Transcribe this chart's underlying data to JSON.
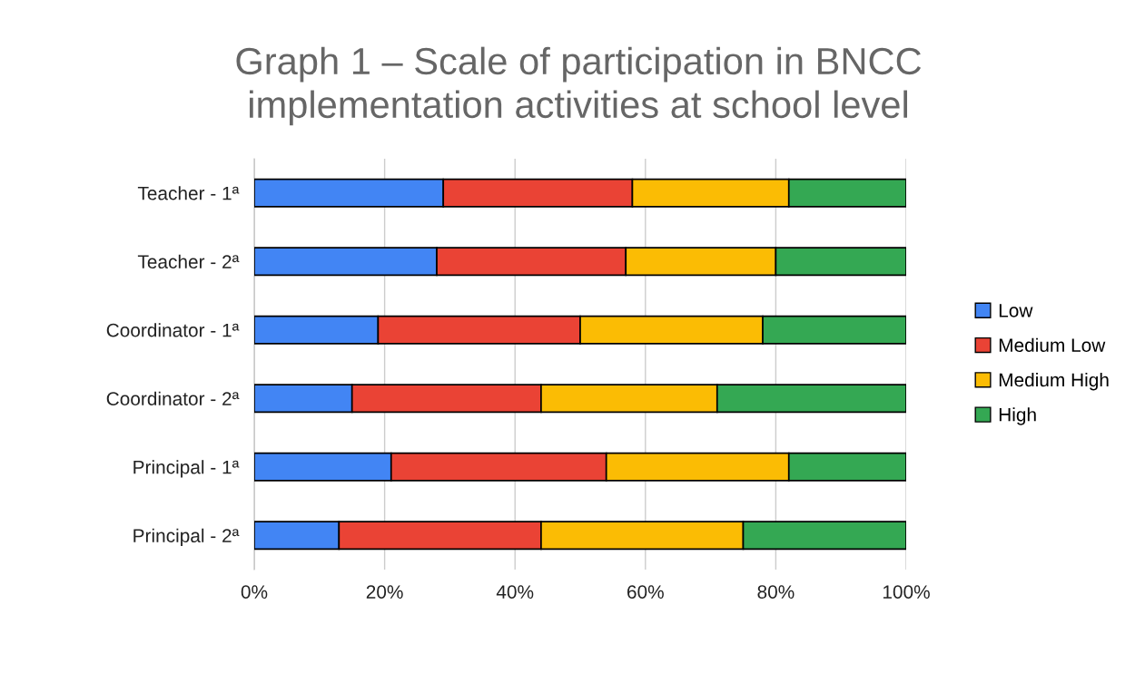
{
  "chart_data": {
    "type": "bar",
    "orientation": "horizontal",
    "stacked": true,
    "title": "Graph 1 – Scale of participation in BNCC\nimplementation activities at school level",
    "categories": [
      "Teacher - 1ª",
      "Teacher - 2ª",
      "Coordinator - 1ª",
      "Coordinator - 2ª",
      "Principal - 1ª",
      "Principal - 2ª"
    ],
    "series": [
      {
        "name": "Low",
        "color": "#4285f4",
        "values": [
          29,
          28,
          19,
          15,
          21,
          13
        ]
      },
      {
        "name": "Medium Low",
        "color": "#ea4335",
        "values": [
          29,
          29,
          31,
          29,
          33,
          31
        ]
      },
      {
        "name": "Medium High",
        "color": "#fbbc04",
        "values": [
          24,
          23,
          28,
          27,
          28,
          31
        ]
      },
      {
        "name": "High",
        "color": "#34a853",
        "values": [
          18,
          20,
          22,
          29,
          18,
          25
        ]
      }
    ],
    "xlim": [
      0,
      100
    ],
    "xticks": [
      {
        "value": 0,
        "label": "0%"
      },
      {
        "value": 20,
        "label": "20%"
      },
      {
        "value": 40,
        "label": "40%"
      },
      {
        "value": 60,
        "label": "60%"
      },
      {
        "value": 80,
        "label": "80%"
      },
      {
        "value": 100,
        "label": "100%"
      }
    ],
    "grid": "x",
    "legend": "right"
  }
}
